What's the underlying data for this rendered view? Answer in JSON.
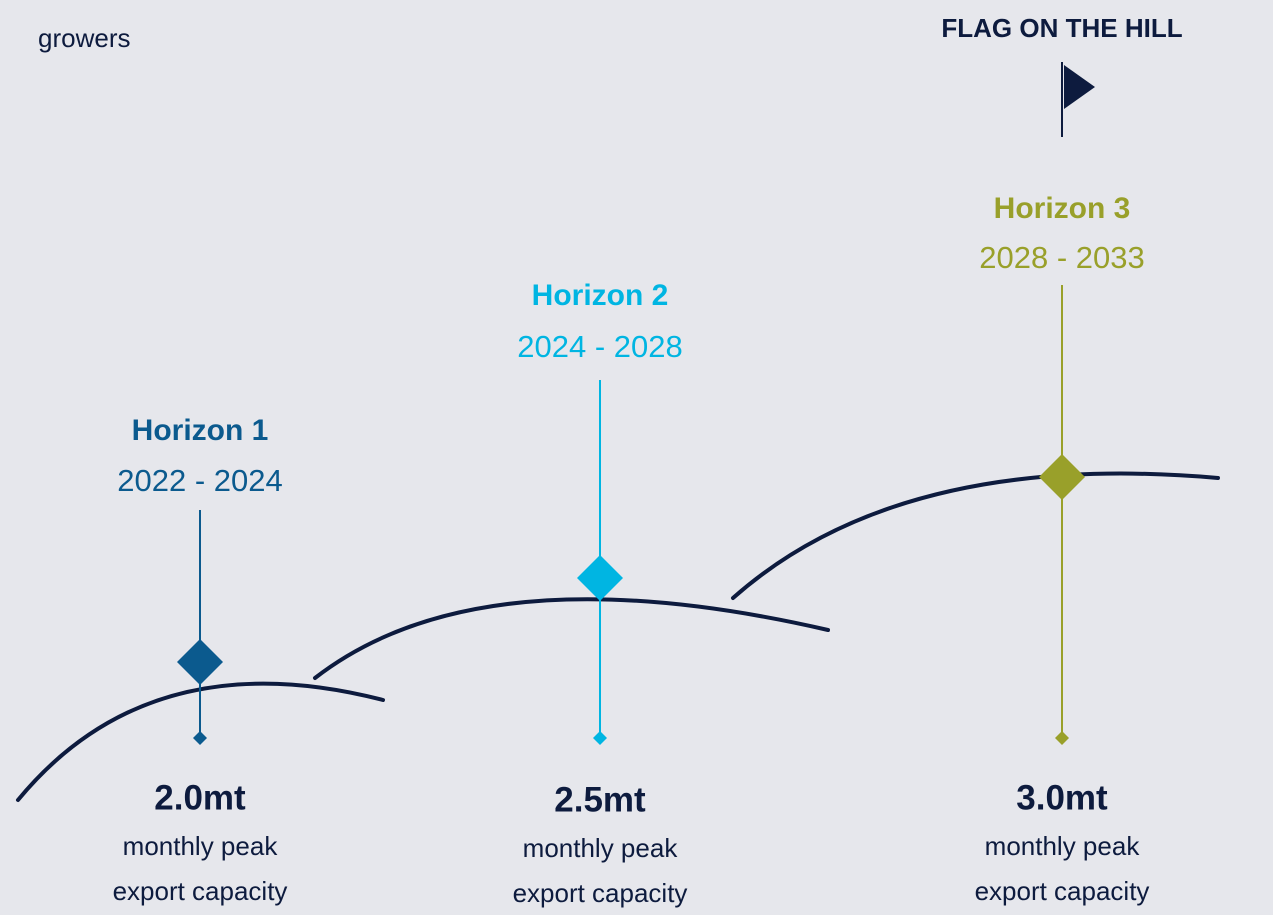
{
  "header": {
    "left_text": "growers",
    "flag_label": "FLAG ON THE HILL"
  },
  "horizons": [
    {
      "title": "Horizon 1",
      "years": "2022 - 2024",
      "value": "2.0mt",
      "description": [
        "monthly peak",
        "export capacity"
      ]
    },
    {
      "title": "Horizon 2",
      "years": "2024 - 2028",
      "value": "2.5mt",
      "description": [
        "monthly peak",
        "export capacity"
      ]
    },
    {
      "title": "Horizon 3",
      "years": "2028 - 2033",
      "value": "3.0mt",
      "description": [
        "monthly peak",
        "export capacity"
      ]
    }
  ]
}
